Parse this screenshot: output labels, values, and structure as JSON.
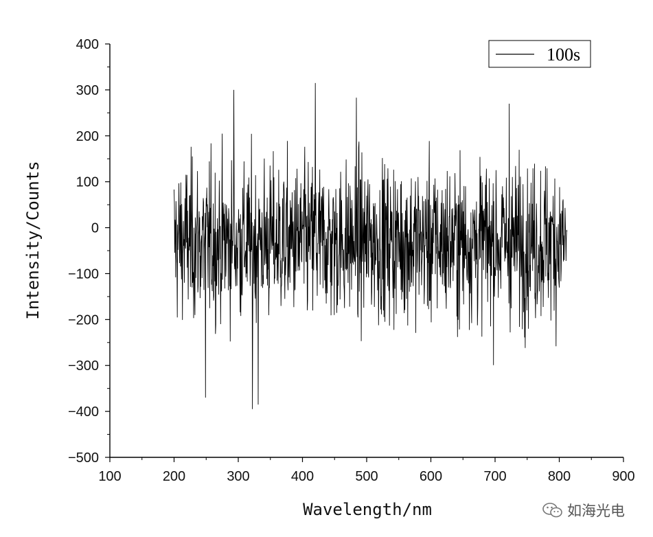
{
  "chart_data": {
    "type": "line",
    "xlabel": "Wavelength/nm",
    "ylabel": "Intensity/Counts",
    "xlim": [
      100,
      900
    ],
    "ylim": [
      -500,
      400
    ],
    "xticks": [
      "100",
      "200",
      "300",
      "400",
      "500",
      "600",
      "700",
      "800",
      "900"
    ],
    "yticks": [
      "400",
      "300",
      "200",
      "100",
      "0",
      "−100",
      "−200",
      "−300",
      "−400",
      "−500"
    ],
    "grid": false,
    "legend_position": "top-right",
    "series": [
      {
        "name": "100s",
        "color": "#000000",
        "x_range": [
          200,
          812
        ],
        "description_values": {
          "mean_approx": -30,
          "noise_peak_max": 315,
          "noise_peak_min": -395,
          "notable_peaks": [
            [
              293,
              300
            ],
            [
              420,
              315
            ],
            [
              484,
              283
            ],
            [
              722,
              270
            ],
            [
              322,
              -395
            ],
            [
              331,
              -385
            ],
            [
              249,
              -370
            ]
          ]
        }
      }
    ]
  },
  "watermark": {
    "text": "如海光电",
    "icon": "wechat-icon"
  }
}
